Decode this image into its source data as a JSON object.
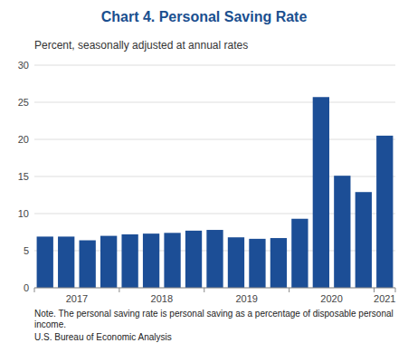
{
  "chart_data": {
    "type": "bar",
    "title": "Chart 4. Personal Saving Rate",
    "subtitle": "Percent, seasonally adjusted at annual rates",
    "annotations": [
      "Note. The personal saving rate is personal saving as a percentage of disposable personal income.",
      "U.S. Bureau of Economic Analysis"
    ],
    "categories": [
      "2017",
      null,
      null,
      null,
      "2018",
      null,
      null,
      null,
      "2019",
      null,
      null,
      null,
      "2020",
      null,
      null,
      null,
      "2021"
    ],
    "values": [
      6.9,
      6.9,
      6.4,
      7.0,
      7.2,
      7.3,
      7.4,
      7.7,
      7.8,
      6.8,
      6.6,
      6.7,
      9.3,
      25.7,
      15.1,
      12.9,
      20.5
    ],
    "color": "#1C4E96",
    "ylim": [
      0,
      30
    ],
    "yticks": [
      0,
      5,
      10,
      15,
      20,
      25,
      30
    ],
    "grid": true
  }
}
